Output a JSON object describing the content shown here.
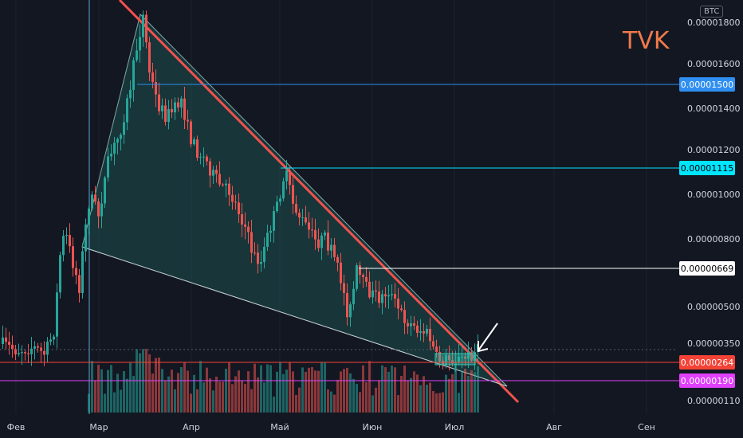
{
  "currency_badge": "BTC",
  "ticker": "TVK",
  "chart_data": {
    "type": "candlestick",
    "title": "TVK",
    "quote_currency": "BTC",
    "x_ticks": [
      "Фев",
      "Мар",
      "Апр",
      "Май",
      "Июн",
      "Июл",
      "Авг",
      "Сен"
    ],
    "y_ticks": [
      "0.00001800",
      "0.00001600",
      "0.00001400",
      "0.00001200",
      "0.00001000",
      "0.00000800",
      "0.00000500",
      "0.00000350",
      "0.00000110"
    ],
    "horizontal_levels": [
      {
        "value": "0.00001500",
        "label": "0.00001500",
        "color": "#2f8ff0",
        "text_color": "#ffffff"
      },
      {
        "value": "0.00001115",
        "label": "0.00001115",
        "color": "#00e5ff",
        "text_color": "#000000"
      },
      {
        "value": "0.00000669",
        "label": "0.00000669",
        "color": "#ffffff",
        "text_color": "#000000"
      },
      {
        "value": "0.00000264",
        "label": "0.00000264",
        "color": "#f44336",
        "text_color": "#ffffff"
      },
      {
        "value": "0.00000190",
        "label": "0.00000190",
        "color": "#e040fb",
        "text_color": "#ffffff"
      }
    ],
    "pattern": "falling wedge",
    "colors": {
      "up": "#26a69a",
      "down": "#ef5350",
      "trendline": "#f0524f",
      "wedge_fill": "#1e5b56"
    }
  }
}
